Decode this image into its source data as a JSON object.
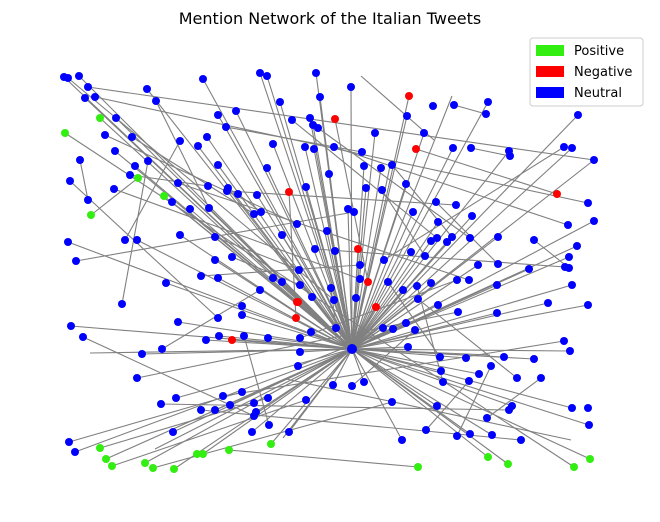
{
  "title": "Mention Network of the Italian Tweets",
  "legend": {
    "placement": "top-right",
    "items": [
      {
        "label": "Positive",
        "color": "#33ee11"
      },
      {
        "label": "Negative",
        "color": "#ff0000"
      },
      {
        "label": "Neutral",
        "color": "#0000ff"
      }
    ]
  },
  "colors": {
    "edge": "#808080",
    "positive": "#33ee11",
    "negative": "#ff0000",
    "neutral": "#0000ff"
  },
  "network": {
    "hub": 0,
    "nodes": [
      {
        "sentiment": "neutral"
      },
      {
        "sentiment": "neutral"
      },
      {
        "sentiment": "neutral"
      },
      {
        "sentiment": "neutral"
      },
      {
        "sentiment": "neutral"
      },
      {
        "sentiment": "neutral"
      },
      {
        "sentiment": "neutral"
      },
      {
        "sentiment": "neutral"
      },
      {
        "sentiment": "neutral"
      },
      {
        "sentiment": "neutral"
      },
      {
        "sentiment": "neutral"
      },
      {
        "sentiment": "neutral"
      },
      {
        "sentiment": "neutral"
      },
      {
        "sentiment": "neutral"
      },
      {
        "sentiment": "neutral"
      },
      {
        "sentiment": "neutral"
      },
      {
        "sentiment": "neutral"
      },
      {
        "sentiment": "neutral"
      },
      {
        "sentiment": "neutral"
      },
      {
        "sentiment": "neutral"
      },
      {
        "sentiment": "neutral"
      },
      {
        "sentiment": "neutral"
      },
      {
        "sentiment": "neutral"
      },
      {
        "sentiment": "neutral"
      },
      {
        "sentiment": "neutral"
      },
      {
        "sentiment": "neutral"
      },
      {
        "sentiment": "neutral"
      },
      {
        "sentiment": "neutral"
      },
      {
        "sentiment": "neutral"
      },
      {
        "sentiment": "neutral"
      },
      {
        "sentiment": "neutral"
      },
      {
        "sentiment": "neutral"
      },
      {
        "sentiment": "neutral"
      },
      {
        "sentiment": "neutral"
      },
      {
        "sentiment": "neutral"
      },
      {
        "sentiment": "neutral"
      },
      {
        "sentiment": "neutral"
      },
      {
        "sentiment": "neutral"
      },
      {
        "sentiment": "neutral"
      },
      {
        "sentiment": "neutral"
      },
      {
        "sentiment": "neutral"
      },
      {
        "sentiment": "neutral"
      },
      {
        "sentiment": "neutral"
      },
      {
        "sentiment": "neutral"
      },
      {
        "sentiment": "neutral"
      },
      {
        "sentiment": "neutral"
      },
      {
        "sentiment": "neutral"
      },
      {
        "sentiment": "neutral"
      },
      {
        "sentiment": "neutral"
      },
      {
        "sentiment": "neutral"
      },
      {
        "sentiment": "neutral"
      },
      {
        "sentiment": "neutral"
      },
      {
        "sentiment": "neutral"
      },
      {
        "sentiment": "neutral"
      },
      {
        "sentiment": "neutral"
      },
      {
        "sentiment": "neutral"
      },
      {
        "sentiment": "neutral"
      },
      {
        "sentiment": "neutral"
      },
      {
        "sentiment": "neutral"
      },
      {
        "sentiment": "neutral"
      },
      {
        "sentiment": "neutral"
      },
      {
        "sentiment": "neutral"
      },
      {
        "sentiment": "neutral"
      },
      {
        "sentiment": "neutral"
      },
      {
        "sentiment": "neutral"
      },
      {
        "sentiment": "neutral"
      },
      {
        "sentiment": "neutral"
      },
      {
        "sentiment": "neutral"
      },
      {
        "sentiment": "neutral"
      },
      {
        "sentiment": "neutral"
      },
      {
        "sentiment": "neutral"
      },
      {
        "sentiment": "neutral"
      },
      {
        "sentiment": "neutral"
      },
      {
        "sentiment": "neutral"
      },
      {
        "sentiment": "neutral"
      },
      {
        "sentiment": "neutral"
      },
      {
        "sentiment": "neutral"
      },
      {
        "sentiment": "neutral"
      },
      {
        "sentiment": "neutral"
      },
      {
        "sentiment": "neutral"
      },
      {
        "sentiment": "neutral"
      },
      {
        "sentiment": "neutral"
      },
      {
        "sentiment": "neutral"
      },
      {
        "sentiment": "neutral"
      },
      {
        "sentiment": "neutral"
      },
      {
        "sentiment": "neutral"
      },
      {
        "sentiment": "neutral"
      },
      {
        "sentiment": "neutral"
      },
      {
        "sentiment": "neutral"
      },
      {
        "sentiment": "neutral"
      },
      {
        "sentiment": "neutral"
      },
      {
        "sentiment": "neutral"
      },
      {
        "sentiment": "neutral"
      },
      {
        "sentiment": "neutral"
      },
      {
        "sentiment": "neutral"
      },
      {
        "sentiment": "neutral"
      },
      {
        "sentiment": "neutral"
      },
      {
        "sentiment": "neutral"
      },
      {
        "sentiment": "neutral"
      },
      {
        "sentiment": "neutral"
      },
      {
        "sentiment": "neutral"
      },
      {
        "sentiment": "neutral"
      },
      {
        "sentiment": "neutral"
      },
      {
        "sentiment": "neutral"
      },
      {
        "sentiment": "neutral"
      },
      {
        "sentiment": "neutral"
      },
      {
        "sentiment": "neutral"
      },
      {
        "sentiment": "neutral"
      },
      {
        "sentiment": "neutral"
      },
      {
        "sentiment": "neutral"
      },
      {
        "sentiment": "neutral"
      },
      {
        "sentiment": "neutral"
      },
      {
        "sentiment": "neutral"
      },
      {
        "sentiment": "neutral"
      },
      {
        "sentiment": "neutral"
      },
      {
        "sentiment": "neutral"
      },
      {
        "sentiment": "neutral"
      },
      {
        "sentiment": "neutral"
      },
      {
        "sentiment": "neutral"
      },
      {
        "sentiment": "neutral"
      },
      {
        "sentiment": "neutral"
      },
      {
        "sentiment": "neutral"
      },
      {
        "sentiment": "neutral"
      },
      {
        "sentiment": "neutral"
      },
      {
        "sentiment": "neutral"
      },
      {
        "sentiment": "neutral"
      },
      {
        "sentiment": "neutral"
      },
      {
        "sentiment": "neutral"
      },
      {
        "sentiment": "neutral"
      },
      {
        "sentiment": "neutral"
      },
      {
        "sentiment": "neutral"
      },
      {
        "sentiment": "neutral"
      },
      {
        "sentiment": "neutral"
      },
      {
        "sentiment": "neutral"
      },
      {
        "sentiment": "neutral"
      },
      {
        "sentiment": "neutral"
      },
      {
        "sentiment": "neutral"
      },
      {
        "sentiment": "neutral"
      },
      {
        "sentiment": "neutral"
      },
      {
        "sentiment": "neutral"
      },
      {
        "sentiment": "neutral"
      },
      {
        "sentiment": "neutral"
      },
      {
        "sentiment": "neutral"
      },
      {
        "sentiment": "neutral"
      },
      {
        "sentiment": "neutral"
      },
      {
        "sentiment": "neutral"
      },
      {
        "sentiment": "neutral"
      },
      {
        "sentiment": "neutral"
      },
      {
        "sentiment": "neutral"
      },
      {
        "sentiment": "neutral"
      },
      {
        "sentiment": "neutral"
      },
      {
        "sentiment": "neutral"
      },
      {
        "sentiment": "neutral"
      },
      {
        "sentiment": "neutral"
      },
      {
        "sentiment": "neutral"
      },
      {
        "sentiment": "neutral"
      },
      {
        "sentiment": "neutral"
      },
      {
        "sentiment": "neutral"
      },
      {
        "sentiment": "neutral"
      },
      {
        "sentiment": "neutral"
      },
      {
        "sentiment": "neutral"
      },
      {
        "sentiment": "neutral"
      },
      {
        "sentiment": "neutral"
      },
      {
        "sentiment": "neutral"
      },
      {
        "sentiment": "neutral"
      },
      {
        "sentiment": "neutral"
      },
      {
        "sentiment": "neutral"
      },
      {
        "sentiment": "neutral"
      },
      {
        "sentiment": "neutral"
      },
      {
        "sentiment": "neutral"
      },
      {
        "sentiment": "neutral"
      },
      {
        "sentiment": "neutral"
      },
      {
        "sentiment": "neutral"
      },
      {
        "sentiment": "neutral"
      },
      {
        "sentiment": "neutral"
      },
      {
        "sentiment": "neutral"
      },
      {
        "sentiment": "neutral"
      },
      {
        "sentiment": "neutral"
      },
      {
        "sentiment": "neutral"
      },
      {
        "sentiment": "neutral"
      },
      {
        "sentiment": "neutral"
      },
      {
        "sentiment": "neutral"
      },
      {
        "sentiment": "neutral"
      },
      {
        "sentiment": "neutral"
      },
      {
        "sentiment": "neutral"
      },
      {
        "sentiment": "neutral"
      },
      {
        "sentiment": "neutral"
      },
      {
        "sentiment": "neutral"
      },
      {
        "sentiment": "neutral"
      },
      {
        "sentiment": "neutral"
      },
      {
        "sentiment": "neutral"
      },
      {
        "sentiment": "neutral"
      },
      {
        "sentiment": "neutral"
      },
      {
        "sentiment": "neutral"
      },
      {
        "sentiment": "neutral"
      },
      {
        "sentiment": "neutral"
      },
      {
        "sentiment": "neutral"
      },
      {
        "sentiment": "neutral"
      },
      {
        "sentiment": "neutral"
      },
      {
        "sentiment": "neutral"
      },
      {
        "sentiment": "neutral"
      },
      {
        "sentiment": "neutral"
      },
      {
        "sentiment": "neutral"
      },
      {
        "sentiment": "neutral"
      },
      {
        "sentiment": "neutral"
      },
      {
        "sentiment": "neutral"
      },
      {
        "sentiment": "neutral"
      },
      {
        "sentiment": "neutral"
      },
      {
        "sentiment": "neutral"
      },
      {
        "sentiment": "neutral"
      },
      {
        "sentiment": "neutral"
      },
      {
        "sentiment": "neutral"
      },
      {
        "sentiment": "neutral"
      },
      {
        "sentiment": "neutral"
      },
      {
        "sentiment": "neutral"
      },
      {
        "sentiment": "neutral"
      },
      {
        "sentiment": "neutral"
      },
      {
        "sentiment": "neutral"
      },
      {
        "sentiment": "positive"
      },
      {
        "sentiment": "positive"
      },
      {
        "sentiment": "positive"
      },
      {
        "sentiment": "positive"
      },
      {
        "sentiment": "positive"
      },
      {
        "sentiment": "positive"
      },
      {
        "sentiment": "positive"
      },
      {
        "sentiment": "positive"
      },
      {
        "sentiment": "positive"
      },
      {
        "sentiment": "positive"
      },
      {
        "sentiment": "positive"
      },
      {
        "sentiment": "positive"
      },
      {
        "sentiment": "positive"
      },
      {
        "sentiment": "positive"
      },
      {
        "sentiment": "positive"
      },
      {
        "sentiment": "positive"
      },
      {
        "sentiment": "positive"
      },
      {
        "sentiment": "positive"
      },
      {
        "sentiment": "positive"
      },
      {
        "sentiment": "positive"
      },
      {
        "sentiment": "negative"
      },
      {
        "sentiment": "negative"
      },
      {
        "sentiment": "negative"
      },
      {
        "sentiment": "negative"
      },
      {
        "sentiment": "negative"
      },
      {
        "sentiment": "negative"
      },
      {
        "sentiment": "negative"
      },
      {
        "sentiment": "negative"
      },
      {
        "sentiment": "negative"
      },
      {
        "sentiment": "negative"
      },
      {
        "sentiment": "negative"
      },
      {
        "sentiment": "negative"
      }
    ]
  }
}
